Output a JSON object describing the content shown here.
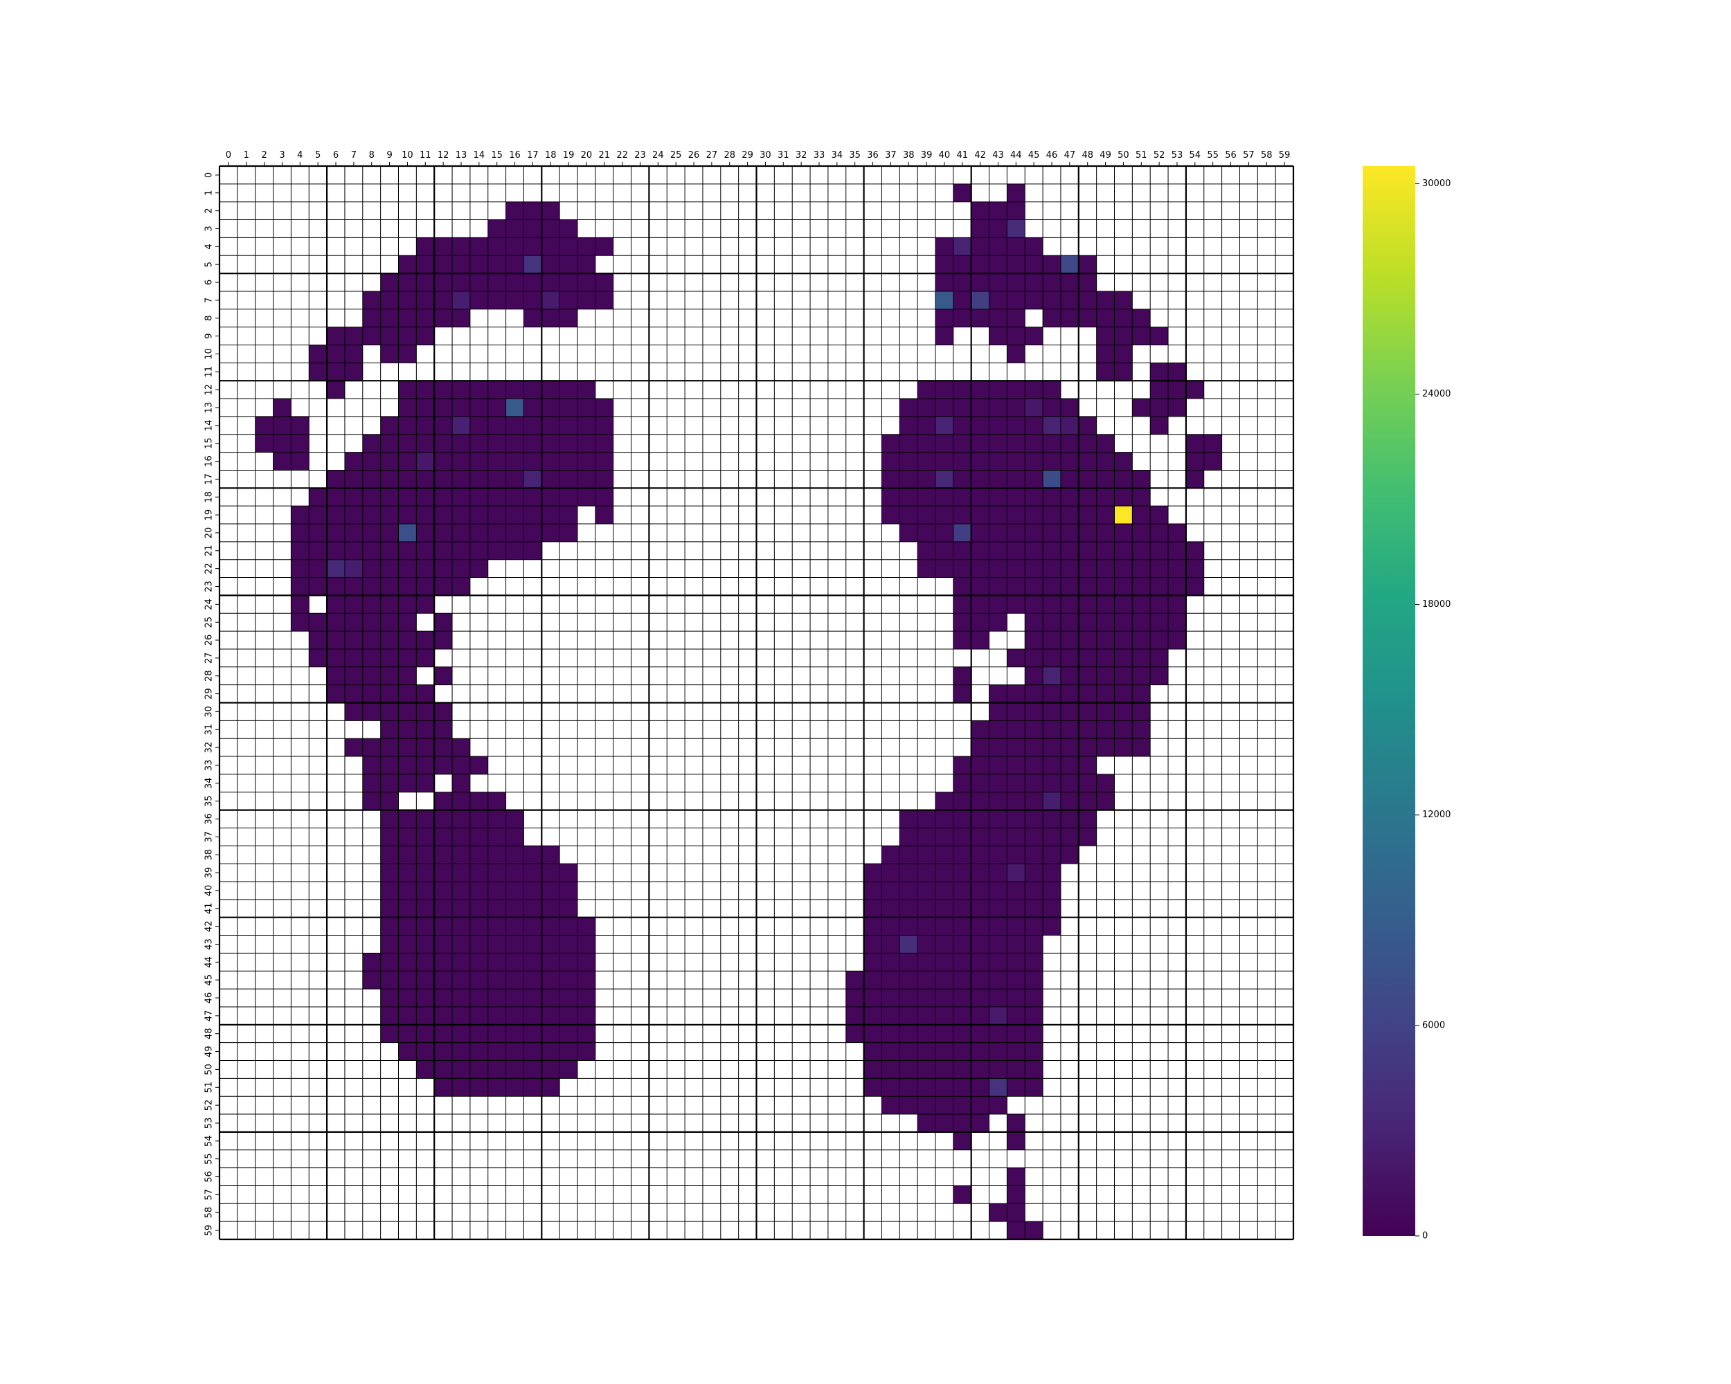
{
  "chart_data": {
    "type": "heatmap",
    "title": "",
    "xlabel": "",
    "ylabel": "",
    "x_ticks": [
      "0",
      "1",
      "2",
      "3",
      "4",
      "5",
      "6",
      "7",
      "8",
      "9",
      "10",
      "11",
      "12",
      "13",
      "14",
      "15",
      "16",
      "17",
      "18",
      "19",
      "20",
      "21",
      "22",
      "23",
      "24",
      "25",
      "26",
      "27",
      "28",
      "29",
      "30",
      "31",
      "32",
      "33",
      "34",
      "35",
      "36",
      "37",
      "38",
      "39",
      "40",
      "41",
      "42",
      "43",
      "44",
      "45",
      "46",
      "47",
      "48",
      "49",
      "50",
      "51",
      "52",
      "53",
      "54",
      "55",
      "56",
      "57",
      "58",
      "59"
    ],
    "y_ticks": [
      "0",
      "1",
      "2",
      "3",
      "4",
      "5",
      "6",
      "7",
      "8",
      "9",
      "10",
      "11",
      "12",
      "13",
      "14",
      "15",
      "16",
      "17",
      "18",
      "19",
      "20",
      "21",
      "22",
      "23",
      "24",
      "25",
      "26",
      "27",
      "28",
      "29",
      "30",
      "31",
      "32",
      "33",
      "34",
      "35",
      "36",
      "37",
      "38",
      "39",
      "40",
      "41",
      "42",
      "43",
      "44",
      "45",
      "46",
      "47",
      "48",
      "49",
      "50",
      "51",
      "52",
      "53",
      "54",
      "55",
      "56",
      "57",
      "58",
      "59"
    ],
    "colormap": "viridis",
    "vmin": 0,
    "vmax": 30500,
    "colorbar_ticks": [
      0,
      6000,
      12000,
      18000,
      24000,
      30000
    ],
    "colorbar_tick_labels": [
      "0",
      "6000",
      "12000",
      "18000",
      "24000",
      "30000"
    ],
    "empty_cell_color": "#ffffff",
    "base_value": 500,
    "left_foot_rows": [
      "2:16-18",
      "3:15-19",
      "4:11-21",
      "5:10-20",
      "6:9-21",
      "7:8-21",
      "8:8-13,17-19",
      "9:6-11",
      "10:5-7,9-10",
      "11:5-7",
      "12:6,10-20",
      "13:3,10-21",
      "14:2-4,9-21",
      "15:2-4,8-21",
      "16:3-4,7-21",
      "17:6-21",
      "18:5-21",
      "19:4-19,21",
      "20:4-19",
      "21:4-17",
      "22:4-14",
      "23:4-13",
      "24:4,6-11",
      "25:4-10,12",
      "26:5-12",
      "27:5-11",
      "28:6-10,12",
      "29:6-11",
      "30:7-12",
      "31:9-12",
      "32:7-13",
      "33:8-14",
      "34:8-11,13",
      "35:8-9,12-15",
      "36:9-16",
      "37:9-16",
      "38:9-18",
      "39:9-19",
      "40:9-19",
      "41:9-19",
      "42:9-20",
      "43:9-20",
      "44:8-20",
      "45:8-20",
      "46:9-20",
      "47:9-20",
      "48:9-20",
      "49:10-20",
      "50:11-19",
      "51:12-18"
    ],
    "right_foot_rows": [
      "1:41,44",
      "2:42-44",
      "3:42-44",
      "4:40-45",
      "5:40-48",
      "6:40-48",
      "7:40-50",
      "8:40-44,46-51",
      "9:40,43-45,49-52",
      "10:44,49-50",
      "11:49-50,52-53",
      "12:39-46,52-54",
      "13:38-47,51-53",
      "14:38-48,52",
      "15:37-49,54-55",
      "16:37-50,54-55",
      "17:37-51,54",
      "18:37-51",
      "19:37-52",
      "20:38-53",
      "21:39-54",
      "22:39-54",
      "23:41-54",
      "24:41-53",
      "25:41-43,45-53",
      "26:41-42,45-53",
      "27:44-52",
      "28:41,45-52",
      "29:41,43-51",
      "30:43-51",
      "31:42-51",
      "32:42-51",
      "33:41-48",
      "34:41-49",
      "35:40-49",
      "36:38-48",
      "37:38-48",
      "38:37-47",
      "39:36-46",
      "40:36-46",
      "41:36-46",
      "42:36-46",
      "43:36-45",
      "44:36-45",
      "45:35-45",
      "46:35-45",
      "47:35-45",
      "48:35-45",
      "49:36-45",
      "50:36-45",
      "51:36-45",
      "52:37-43",
      "53:39-42,44",
      "54:41,44",
      "56:44",
      "57:41,44",
      "58:43-44",
      "59:44-45"
    ],
    "highlight_cells": [
      {
        "row": 5,
        "col": 17,
        "value": 4500
      },
      {
        "row": 13,
        "col": 16,
        "value": 8500
      },
      {
        "row": 14,
        "col": 13,
        "value": 2800
      },
      {
        "row": 16,
        "col": 11,
        "value": 2000
      },
      {
        "row": 17,
        "col": 17,
        "value": 3000
      },
      {
        "row": 20,
        "col": 10,
        "value": 7500
      },
      {
        "row": 22,
        "col": 6,
        "value": 3500
      },
      {
        "row": 22,
        "col": 7,
        "value": 2500
      },
      {
        "row": 7,
        "col": 13,
        "value": 2500
      },
      {
        "row": 7,
        "col": 18,
        "value": 2200
      },
      {
        "row": 3,
        "col": 44,
        "value": 3800
      },
      {
        "row": 4,
        "col": 41,
        "value": 3000
      },
      {
        "row": 5,
        "col": 47,
        "value": 6500
      },
      {
        "row": 7,
        "col": 40,
        "value": 8500
      },
      {
        "row": 7,
        "col": 42,
        "value": 5500
      },
      {
        "row": 13,
        "col": 45,
        "value": 2000
      },
      {
        "row": 14,
        "col": 40,
        "value": 3000
      },
      {
        "row": 14,
        "col": 46,
        "value": 3000
      },
      {
        "row": 14,
        "col": 47,
        "value": 2000
      },
      {
        "row": 17,
        "col": 40,
        "value": 3500
      },
      {
        "row": 17,
        "col": 46,
        "value": 7000
      },
      {
        "row": 19,
        "col": 50,
        "value": 30500
      },
      {
        "row": 20,
        "col": 41,
        "value": 5500
      },
      {
        "row": 28,
        "col": 46,
        "value": 3000
      },
      {
        "row": 35,
        "col": 46,
        "value": 2500
      },
      {
        "row": 39,
        "col": 44,
        "value": 2200
      },
      {
        "row": 43,
        "col": 38,
        "value": 4000
      },
      {
        "row": 47,
        "col": 43,
        "value": 2200
      },
      {
        "row": 51,
        "col": 43,
        "value": 4500
      }
    ]
  }
}
